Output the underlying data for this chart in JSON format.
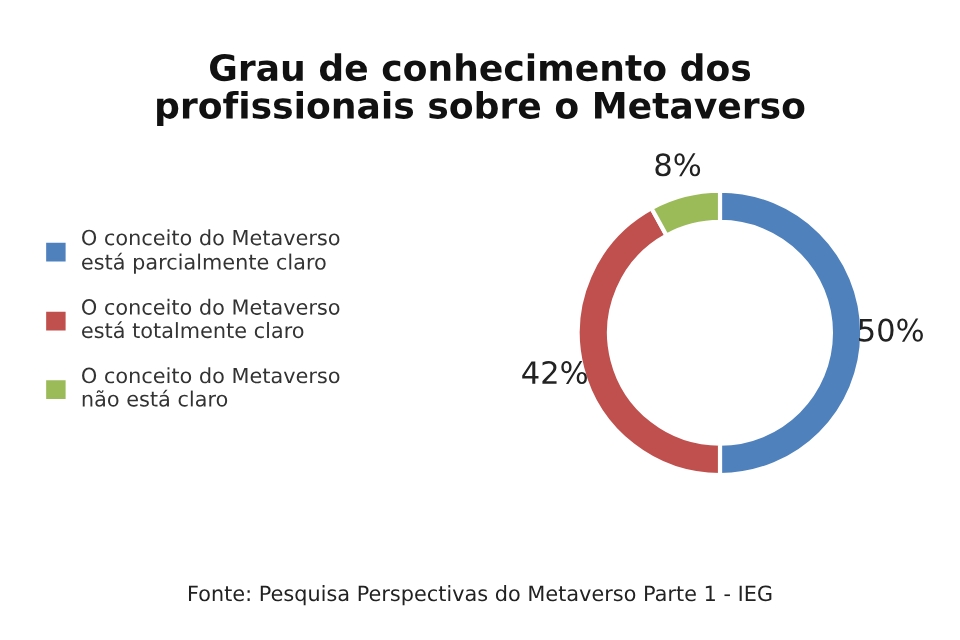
{
  "chart_data": {
    "type": "donut",
    "title": "Grau de conhecimento dos\nprofissionais sobre o Metaverso",
    "categories": [
      "O conceito do Metaverso\nestá parcialmente claro",
      "O conceito do Metaverso\nestá totalmente claro",
      "O conceito do Metaverso\nnão está claro"
    ],
    "values": [
      50,
      42,
      8
    ],
    "colors": [
      "#4f81bd",
      "#c0504d",
      "#9bbb59"
    ],
    "value_labels": [
      "50%",
      "42%",
      "8%"
    ],
    "legend": "left",
    "annotations": [
      "Fonte: Pesquisa Perspectivas do Metaverso Parte 1 - IEG"
    ]
  }
}
